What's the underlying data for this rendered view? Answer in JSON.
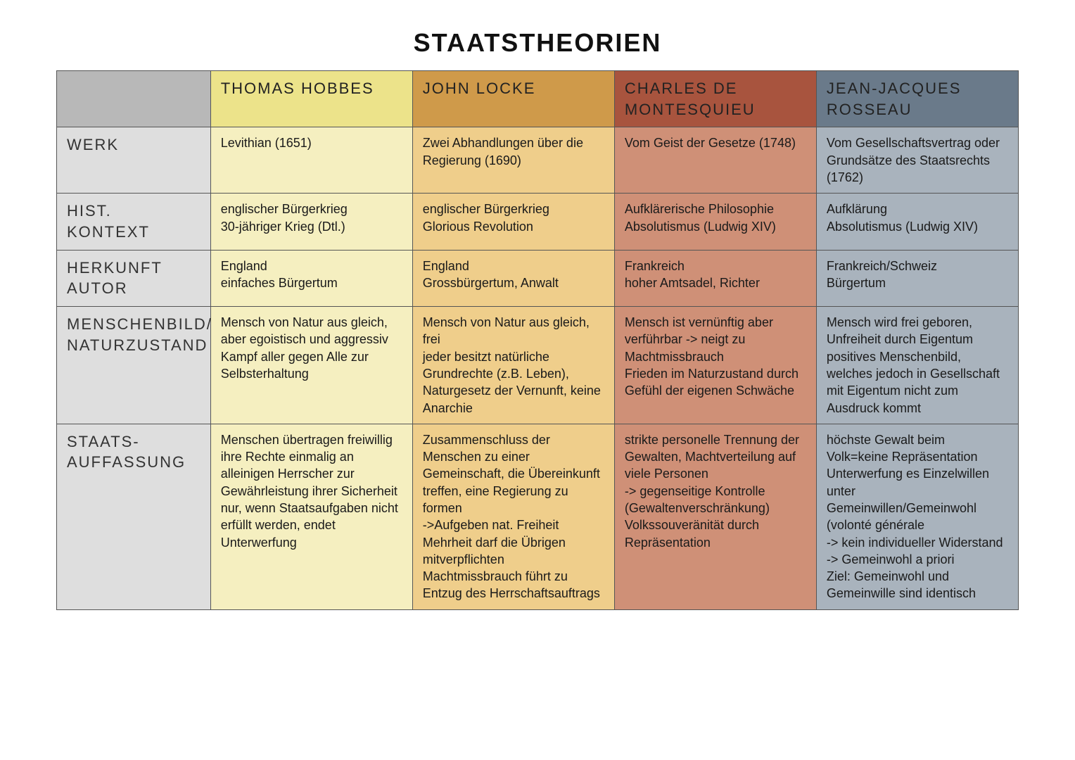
{
  "title": "STAATSTHEORIEN",
  "colors": {
    "corner_bg": "#b8b8b8",
    "rowhead_bg": "#dedede",
    "border": "#555555",
    "text": "#1a1a1a",
    "columns": {
      "hobbes": {
        "header": "#ece38a",
        "body": "#f5efc0"
      },
      "locke": {
        "header": "#cf9a4a",
        "body": "#efce8b"
      },
      "montesquieu": {
        "header": "#a8543e",
        "body": "#cf9077"
      },
      "rousseau": {
        "header": "#6a7a8a",
        "body": "#a9b3bd"
      }
    }
  },
  "fonts": {
    "title_family": "Arial Black, Impact, sans-serif",
    "title_size_pt": 27,
    "header_family": "Arial Narrow, Helvetica Neue, sans-serif",
    "header_size_pt": 16,
    "body_family": "Comic Sans MS, Segoe Script, cursive",
    "body_size_pt": 13
  },
  "columns": [
    {
      "key": "hobbes",
      "label": "Thomas Hobbes"
    },
    {
      "key": "locke",
      "label": "John Locke"
    },
    {
      "key": "montesquieu",
      "label": "Charles de Montesquieu"
    },
    {
      "key": "rousseau",
      "label": "Jean-Jacques Rosseau"
    }
  ],
  "rows": [
    {
      "key": "werk",
      "label": "Werk"
    },
    {
      "key": "kontext",
      "label": "Hist. Kontext"
    },
    {
      "key": "herkunft",
      "label": "Herkunft Autor"
    },
    {
      "key": "menschenbild",
      "label": "Menschenbild/\nNaturzustand"
    },
    {
      "key": "staat",
      "label": "Staats-\nauffassung"
    }
  ],
  "cells": {
    "werk": {
      "hobbes": "Levithian (1651)",
      "locke": "Zwei Abhandlungen über die Regierung (1690)",
      "montesquieu": "Vom Geist der Gesetze (1748)",
      "rousseau": "Vom Gesellschaftsvertrag oder Grundsätze des Staatsrechts (1762)"
    },
    "kontext": {
      "hobbes": "englischer Bürgerkrieg\n30-jähriger Krieg (Dtl.)",
      "locke": "englischer Bürgerkrieg\nGlorious Revolution",
      "montesquieu": "Aufklärerische Philosophie\nAbsolutismus (Ludwig XIV)",
      "rousseau": "Aufklärung\nAbsolutismus (Ludwig XIV)"
    },
    "herkunft": {
      "hobbes": "England\neinfaches Bürgertum",
      "locke": "England\nGrossbürgertum, Anwalt",
      "montesquieu": "Frankreich\nhoher Amtsadel, Richter",
      "rousseau": "Frankreich/Schweiz\nBürgertum"
    },
    "menschenbild": {
      "hobbes": "Mensch von Natur aus gleich, aber egoistisch und aggressiv\nKampf aller gegen Alle zur Selbsterhaltung",
      "locke": "Mensch von Natur aus gleich, frei\njeder besitzt natürliche Grundrechte (z.B. Leben), Naturgesetz der Vernunft, keine Anarchie",
      "montesquieu": "Mensch ist vernünftig aber verführbar -> neigt zu Machtmissbrauch\nFrieden im Naturzustand durch Gefühl der eigenen Schwäche",
      "rousseau": "Mensch wird frei geboren, Unfreiheit durch Eigentum positives Menschenbild, welches jedoch in Gesellschaft mit Eigentum nicht zum Ausdruck kommt"
    },
    "staat": {
      "hobbes": "Menschen übertragen freiwillig ihre Rechte einmalig an alleinigen Herrscher zur Gewährleistung ihrer Sicherheit\nnur, wenn Staatsaufgaben nicht erfüllt werden, endet Unterwerfung",
      "locke": "Zusammenschluss der Menschen zu einer Gemeinschaft, die Übereinkunft treffen, eine Regierung zu formen\n->Aufgeben nat. Freiheit\nMehrheit darf die Übrigen mitverpflichten\nMachtmissbrauch führt zu Entzug des Herrschaftsauftrags",
      "montesquieu": "strikte personelle Trennung der Gewalten, Machtverteilung auf viele Personen\n-> gegenseitige Kontrolle (Gewaltenverschränkung)\nVolkssouveränität durch Repräsentation",
      "rousseau": "höchste Gewalt beim Volk=keine Repräsentation\nUnterwerfung es Einzelwillen unter Gemeinwillen/Gemeinwohl (volonté générale\n-> kein individueller Widerstand\n-> Gemeinwohl a priori\nZiel: Gemeinwohl und Gemeinwille sind identisch"
    }
  }
}
